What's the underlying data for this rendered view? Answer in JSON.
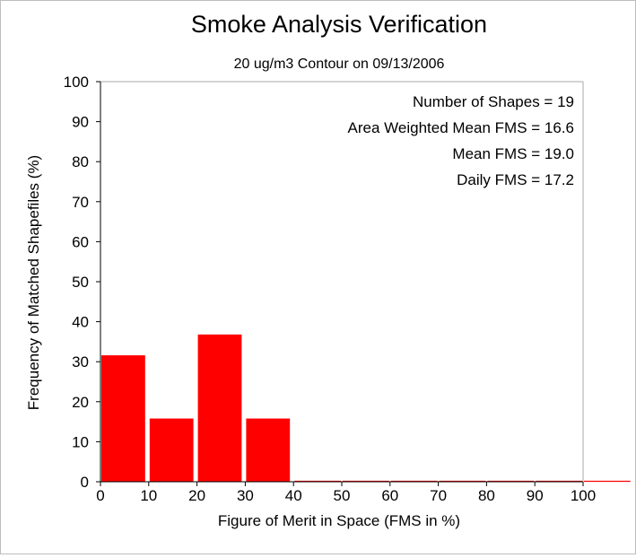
{
  "chart_data": {
    "type": "bar",
    "title": "Smoke Analysis Verification",
    "subtitle": "20 ug/m3 Contour on 09/13/2006",
    "xlabel": "Figure of Merit in Space (FMS in %)",
    "ylabel": "Frequency of Matched Shapefiles (%)",
    "xlim": [
      0,
      110
    ],
    "ylim": [
      0,
      100
    ],
    "xticks": [
      "0",
      "10",
      "20",
      "30",
      "40",
      "50",
      "60",
      "70",
      "80",
      "90",
      "100"
    ],
    "yticks": [
      "0",
      "10",
      "20",
      "30",
      "40",
      "50",
      "60",
      "70",
      "80",
      "90",
      "100"
    ],
    "bin_width": 10,
    "bins": [
      {
        "start": 0,
        "value": 31.6
      },
      {
        "start": 10,
        "value": 15.8
      },
      {
        "start": 20,
        "value": 36.8
      },
      {
        "start": 30,
        "value": 15.8
      },
      {
        "start": 40,
        "value": 0
      },
      {
        "start": 50,
        "value": 0
      },
      {
        "start": 60,
        "value": 0
      },
      {
        "start": 70,
        "value": 0
      },
      {
        "start": 80,
        "value": 0
      },
      {
        "start": 90,
        "value": 0
      },
      {
        "start": 100,
        "value": 0
      }
    ],
    "bar_color": "#ff0000",
    "grid": false,
    "annotations": [
      "Number of Shapes = 19",
      "Area Weighted Mean FMS = 16.6",
      "Mean FMS = 19.0",
      "Daily FMS = 17.2"
    ]
  }
}
